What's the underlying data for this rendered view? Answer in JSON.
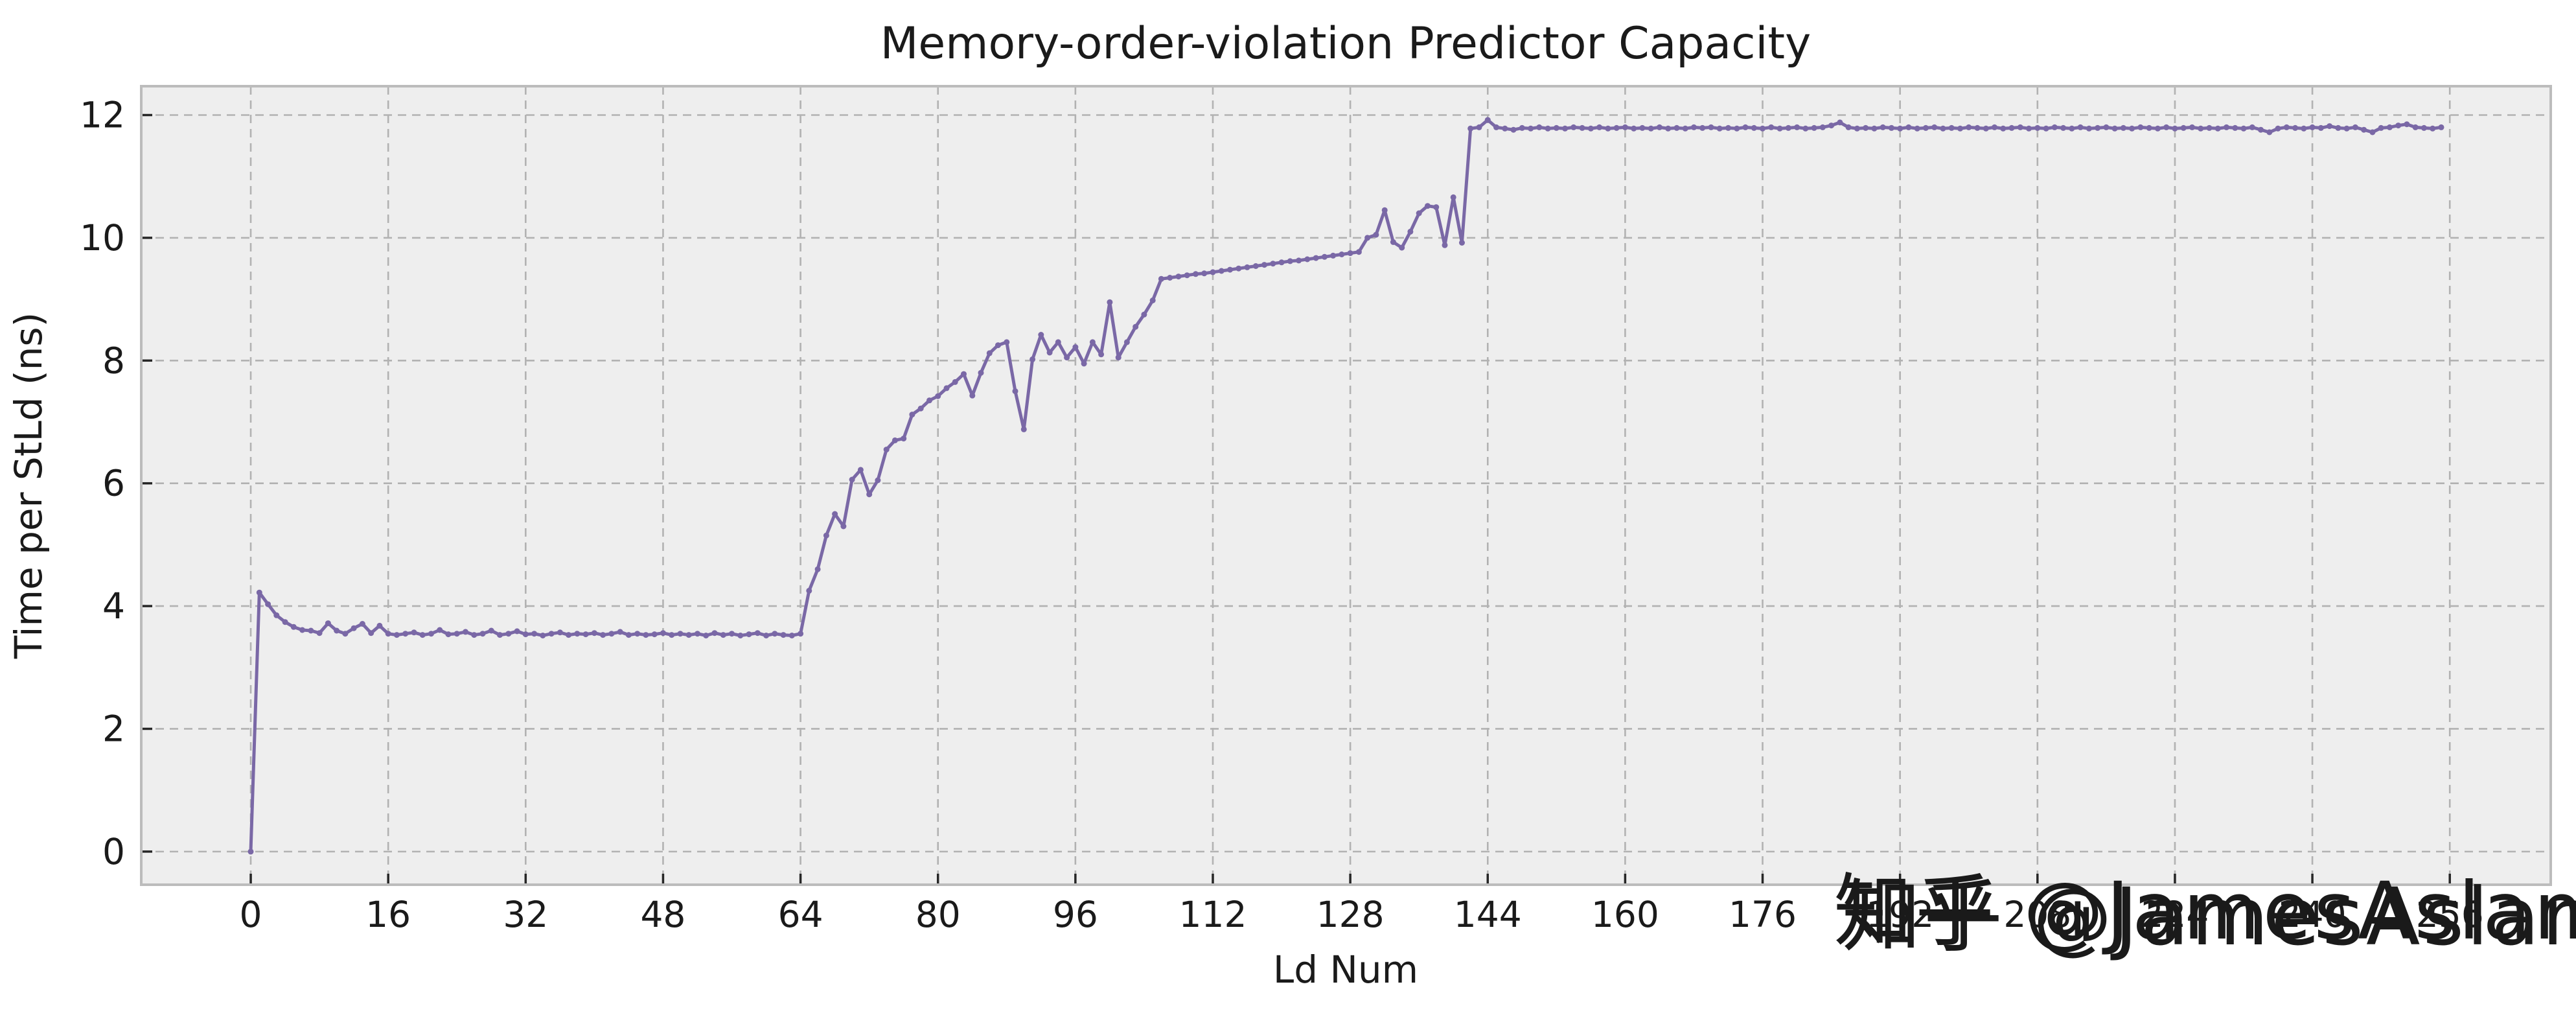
{
  "chart_data": {
    "type": "line",
    "title": "Memory-order-violation Predictor Capacity",
    "xlabel": "Ld Num",
    "ylabel": "Time per StLd (ns)",
    "xlim": [
      -12.75,
      267.75
    ],
    "ylim": [
      -0.54,
      12.47
    ],
    "xticks": [
      0,
      16,
      32,
      48,
      64,
      80,
      96,
      112,
      128,
      144,
      160,
      176,
      192,
      208,
      224,
      240,
      256
    ],
    "yticks": [
      0,
      2,
      4,
      6,
      8,
      10,
      12
    ],
    "grid": true,
    "legend_position": "none",
    "line_color": "#7A68A6",
    "axes_bg": "#eeeeee",
    "figure_bg": "#ffffff",
    "grid_color": "#b2b2b2",
    "spine_color": "#bcbcbc",
    "tick_color": "#262626",
    "marker": "dot",
    "points": [
      [
        0,
        0.0
      ],
      [
        1,
        4.22
      ],
      [
        2,
        4.03
      ],
      [
        3,
        3.85
      ],
      [
        4,
        3.74
      ],
      [
        5,
        3.66
      ],
      [
        6,
        3.61
      ],
      [
        7,
        3.6
      ],
      [
        8,
        3.56
      ],
      [
        9,
        3.72
      ],
      [
        10,
        3.6
      ],
      [
        11,
        3.55
      ],
      [
        12,
        3.64
      ],
      [
        13,
        3.71
      ],
      [
        14,
        3.56
      ],
      [
        15,
        3.68
      ],
      [
        16,
        3.55
      ],
      [
        17,
        3.53
      ],
      [
        18,
        3.55
      ],
      [
        19,
        3.57
      ],
      [
        20,
        3.53
      ],
      [
        21,
        3.55
      ],
      [
        22,
        3.61
      ],
      [
        23,
        3.54
      ],
      [
        24,
        3.55
      ],
      [
        25,
        3.58
      ],
      [
        26,
        3.53
      ],
      [
        27,
        3.55
      ],
      [
        28,
        3.6
      ],
      [
        29,
        3.53
      ],
      [
        30,
        3.55
      ],
      [
        31,
        3.59
      ],
      [
        32,
        3.54
      ],
      [
        33,
        3.55
      ],
      [
        34,
        3.52
      ],
      [
        35,
        3.55
      ],
      [
        36,
        3.57
      ],
      [
        37,
        3.53
      ],
      [
        38,
        3.55
      ],
      [
        39,
        3.54
      ],
      [
        40,
        3.56
      ],
      [
        41,
        3.53
      ],
      [
        42,
        3.55
      ],
      [
        43,
        3.58
      ],
      [
        44,
        3.53
      ],
      [
        45,
        3.55
      ],
      [
        46,
        3.53
      ],
      [
        47,
        3.54
      ],
      [
        48,
        3.56
      ],
      [
        49,
        3.53
      ],
      [
        50,
        3.55
      ],
      [
        51,
        3.53
      ],
      [
        52,
        3.55
      ],
      [
        53,
        3.52
      ],
      [
        54,
        3.56
      ],
      [
        55,
        3.53
      ],
      [
        56,
        3.55
      ],
      [
        57,
        3.52
      ],
      [
        58,
        3.54
      ],
      [
        59,
        3.56
      ],
      [
        60,
        3.52
      ],
      [
        61,
        3.55
      ],
      [
        62,
        3.53
      ],
      [
        63,
        3.52
      ],
      [
        64,
        3.55
      ],
      [
        65,
        4.25
      ],
      [
        66,
        4.6
      ],
      [
        67,
        5.15
      ],
      [
        68,
        5.5
      ],
      [
        69,
        5.3
      ],
      [
        70,
        6.06
      ],
      [
        71,
        6.22
      ],
      [
        72,
        5.82
      ],
      [
        73,
        6.05
      ],
      [
        74,
        6.55
      ],
      [
        75,
        6.7
      ],
      [
        76,
        6.73
      ],
      [
        77,
        7.12
      ],
      [
        78,
        7.22
      ],
      [
        79,
        7.35
      ],
      [
        80,
        7.42
      ],
      [
        81,
        7.55
      ],
      [
        82,
        7.65
      ],
      [
        83,
        7.78
      ],
      [
        84,
        7.43
      ],
      [
        85,
        7.8
      ],
      [
        86,
        8.12
      ],
      [
        87,
        8.25
      ],
      [
        88,
        8.3
      ],
      [
        89,
        7.5
      ],
      [
        90,
        6.88
      ],
      [
        91,
        8.02
      ],
      [
        92,
        8.42
      ],
      [
        93,
        8.13
      ],
      [
        94,
        8.3
      ],
      [
        95,
        8.05
      ],
      [
        96,
        8.22
      ],
      [
        97,
        7.95
      ],
      [
        98,
        8.3
      ],
      [
        99,
        8.1
      ],
      [
        100,
        8.95
      ],
      [
        101,
        8.05
      ],
      [
        102,
        8.3
      ],
      [
        103,
        8.55
      ],
      [
        104,
        8.75
      ],
      [
        105,
        8.98
      ],
      [
        106,
        9.33
      ],
      [
        107,
        9.35
      ],
      [
        108,
        9.37
      ],
      [
        109,
        9.39
      ],
      [
        110,
        9.41
      ],
      [
        111,
        9.42
      ],
      [
        112,
        9.44
      ],
      [
        113,
        9.46
      ],
      [
        114,
        9.48
      ],
      [
        115,
        9.5
      ],
      [
        116,
        9.52
      ],
      [
        117,
        9.54
      ],
      [
        118,
        9.56
      ],
      [
        119,
        9.58
      ],
      [
        120,
        9.6
      ],
      [
        121,
        9.62
      ],
      [
        122,
        9.63
      ],
      [
        123,
        9.65
      ],
      [
        124,
        9.67
      ],
      [
        125,
        9.69
      ],
      [
        126,
        9.71
      ],
      [
        127,
        9.73
      ],
      [
        128,
        9.75
      ],
      [
        129,
        9.77
      ],
      [
        130,
        10.0
      ],
      [
        131,
        10.05
      ],
      [
        132,
        10.45
      ],
      [
        133,
        9.93
      ],
      [
        134,
        9.84
      ],
      [
        135,
        10.1
      ],
      [
        136,
        10.4
      ],
      [
        137,
        10.52
      ],
      [
        138,
        10.5
      ],
      [
        139,
        9.88
      ],
      [
        140,
        10.66
      ],
      [
        141,
        9.92
      ],
      [
        142,
        11.78
      ],
      [
        143,
        11.8
      ],
      [
        144,
        11.92
      ],
      [
        145,
        11.8
      ],
      [
        146,
        11.78
      ],
      [
        147,
        11.76
      ],
      [
        148,
        11.79
      ],
      [
        149,
        11.78
      ],
      [
        150,
        11.8
      ],
      [
        151,
        11.78
      ],
      [
        152,
        11.79
      ],
      [
        153,
        11.78
      ],
      [
        154,
        11.8
      ],
      [
        155,
        11.79
      ],
      [
        156,
        11.78
      ],
      [
        157,
        11.8
      ],
      [
        158,
        11.78
      ],
      [
        159,
        11.79
      ],
      [
        160,
        11.8
      ],
      [
        161,
        11.78
      ],
      [
        162,
        11.79
      ],
      [
        163,
        11.78
      ],
      [
        164,
        11.8
      ],
      [
        165,
        11.78
      ],
      [
        166,
        11.79
      ],
      [
        167,
        11.78
      ],
      [
        168,
        11.8
      ],
      [
        169,
        11.79
      ],
      [
        170,
        11.8
      ],
      [
        171,
        11.78
      ],
      [
        172,
        11.79
      ],
      [
        173,
        11.78
      ],
      [
        174,
        11.8
      ],
      [
        175,
        11.79
      ],
      [
        176,
        11.78
      ],
      [
        177,
        11.8
      ],
      [
        178,
        11.78
      ],
      [
        179,
        11.79
      ],
      [
        180,
        11.8
      ],
      [
        181,
        11.78
      ],
      [
        182,
        11.79
      ],
      [
        183,
        11.8
      ],
      [
        184,
        11.83
      ],
      [
        185,
        11.88
      ],
      [
        186,
        11.8
      ],
      [
        187,
        11.78
      ],
      [
        188,
        11.79
      ],
      [
        189,
        11.78
      ],
      [
        190,
        11.8
      ],
      [
        191,
        11.79
      ],
      [
        192,
        11.78
      ],
      [
        193,
        11.8
      ],
      [
        194,
        11.78
      ],
      [
        195,
        11.79
      ],
      [
        196,
        11.8
      ],
      [
        197,
        11.78
      ],
      [
        198,
        11.79
      ],
      [
        199,
        11.78
      ],
      [
        200,
        11.8
      ],
      [
        201,
        11.79
      ],
      [
        202,
        11.78
      ],
      [
        203,
        11.8
      ],
      [
        204,
        11.78
      ],
      [
        205,
        11.79
      ],
      [
        206,
        11.8
      ],
      [
        207,
        11.78
      ],
      [
        208,
        11.79
      ],
      [
        209,
        11.78
      ],
      [
        210,
        11.8
      ],
      [
        211,
        11.79
      ],
      [
        212,
        11.78
      ],
      [
        213,
        11.8
      ],
      [
        214,
        11.78
      ],
      [
        215,
        11.79
      ],
      [
        216,
        11.8
      ],
      [
        217,
        11.78
      ],
      [
        218,
        11.79
      ],
      [
        219,
        11.78
      ],
      [
        220,
        11.8
      ],
      [
        221,
        11.79
      ],
      [
        222,
        11.78
      ],
      [
        223,
        11.8
      ],
      [
        224,
        11.78
      ],
      [
        225,
        11.79
      ],
      [
        226,
        11.8
      ],
      [
        227,
        11.78
      ],
      [
        228,
        11.79
      ],
      [
        229,
        11.78
      ],
      [
        230,
        11.8
      ],
      [
        231,
        11.79
      ],
      [
        232,
        11.78
      ],
      [
        233,
        11.8
      ],
      [
        234,
        11.76
      ],
      [
        235,
        11.72
      ],
      [
        236,
        11.78
      ],
      [
        237,
        11.8
      ],
      [
        238,
        11.79
      ],
      [
        239,
        11.78
      ],
      [
        240,
        11.8
      ],
      [
        241,
        11.79
      ],
      [
        242,
        11.82
      ],
      [
        243,
        11.79
      ],
      [
        244,
        11.78
      ],
      [
        245,
        11.8
      ],
      [
        246,
        11.76
      ],
      [
        247,
        11.72
      ],
      [
        248,
        11.79
      ],
      [
        249,
        11.8
      ],
      [
        250,
        11.83
      ],
      [
        251,
        11.85
      ],
      [
        252,
        11.8
      ],
      [
        253,
        11.79
      ],
      [
        254,
        11.78
      ],
      [
        255,
        11.8
      ]
    ]
  },
  "watermark": {
    "text": "知乎 @JamesAslan",
    "front_color": "#ffffff",
    "shadow_color": "#bdbdbd"
  }
}
